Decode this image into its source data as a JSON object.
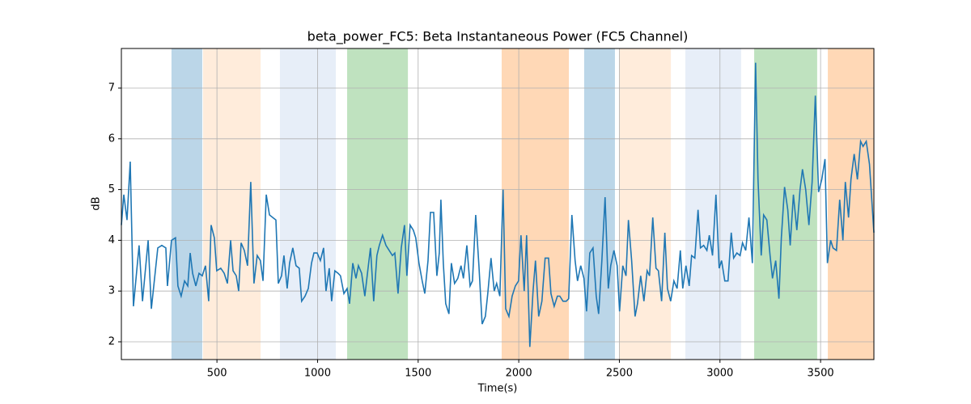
{
  "chart_data": {
    "type": "line",
    "title": "beta_power_FC5: Beta Instantaneous Power (FC5 Channel)",
    "xlabel": "Time(s)",
    "ylabel": "dB",
    "xlim": [
      25,
      3765
    ],
    "ylim": [
      1.65,
      7.78
    ],
    "xticks": [
      500,
      1000,
      1500,
      2000,
      2500,
      3000,
      3500
    ],
    "yticks": [
      2,
      3,
      4,
      5,
      6,
      7
    ],
    "grid": true,
    "spans": [
      {
        "start": 274,
        "end": 427,
        "color": "rgba(31,119,180,0.3)"
      },
      {
        "start": 431,
        "end": 717,
        "color": "rgba(255,127,14,0.15)"
      },
      {
        "start": 813,
        "end": 1091,
        "color": "rgba(174,199,232,0.3)"
      },
      {
        "start": 1147,
        "end": 1449,
        "color": "rgba(44,160,44,0.3)"
      },
      {
        "start": 1915,
        "end": 2249,
        "color": "rgba(255,127,14,0.3)"
      },
      {
        "start": 2325,
        "end": 2478,
        "color": "rgba(31,119,180,0.3)"
      },
      {
        "start": 2498,
        "end": 2756,
        "color": "rgba(255,127,14,0.15)"
      },
      {
        "start": 2828,
        "end": 3105,
        "color": "rgba(174,199,232,0.3)"
      },
      {
        "start": 3170,
        "end": 3483,
        "color": "rgba(44,160,44,0.3)"
      },
      {
        "start": 3536,
        "end": 3765,
        "color": "rgba(255,127,14,0.3)"
      }
    ],
    "x": [
      25,
      37,
      53,
      69,
      85,
      113,
      130,
      158,
      174,
      206,
      226,
      246,
      254,
      274,
      294,
      306,
      322,
      339,
      355,
      367,
      379,
      395,
      411,
      427,
      443,
      459,
      471,
      487,
      499,
      519,
      536,
      552,
      568,
      580,
      596,
      608,
      620,
      636,
      652,
      668,
      684,
      700,
      716,
      729,
      745,
      761,
      777,
      793,
      805,
      821,
      833,
      849,
      861,
      877,
      893,
      909,
      921,
      938,
      954,
      970,
      982,
      998,
      1014,
      1030,
      1042,
      1058,
      1070,
      1086,
      1102,
      1114,
      1131,
      1147,
      1159,
      1175,
      1191,
      1203,
      1219,
      1235,
      1251,
      1263,
      1279,
      1295,
      1307,
      1323,
      1340,
      1356,
      1372,
      1384,
      1400,
      1416,
      1432,
      1444,
      1460,
      1476,
      1488,
      1504,
      1520,
      1533,
      1549,
      1561,
      1577,
      1593,
      1605,
      1613,
      1625,
      1637,
      1653,
      1665,
      1681,
      1697,
      1713,
      1725,
      1742,
      1758,
      1770,
      1786,
      1802,
      1818,
      1834,
      1846,
      1862,
      1878,
      1890,
      1906,
      1922,
      1935,
      1951,
      1967,
      1983,
      1999,
      2011,
      2027,
      2039,
      2055,
      2071,
      2083,
      2099,
      2115,
      2131,
      2148,
      2160,
      2176,
      2192,
      2204,
      2220,
      2236,
      2248,
      2264,
      2280,
      2292,
      2308,
      2324,
      2337,
      2353,
      2369,
      2385,
      2397,
      2413,
      2429,
      2445,
      2457,
      2473,
      2489,
      2501,
      2517,
      2533,
      2545,
      2561,
      2578,
      2590,
      2606,
      2622,
      2638,
      2650,
      2666,
      2682,
      2694,
      2710,
      2726,
      2739,
      2755,
      2771,
      2787,
      2803,
      2815,
      2831,
      2847,
      2859,
      2875,
      2891,
      2903,
      2919,
      2935,
      2947,
      2963,
      2980,
      2996,
      3008,
      3024,
      3040,
      3056,
      3068,
      3084,
      3100,
      3112,
      3128,
      3144,
      3161,
      3177,
      3189,
      3205,
      3217,
      3233,
      3249,
      3261,
      3277,
      3293,
      3305,
      3321,
      3337,
      3349,
      3365,
      3382,
      3398,
      3410,
      3426,
      3442,
      3458,
      3474,
      3490,
      3506,
      3522,
      3534,
      3550,
      3562,
      3579,
      3595,
      3611,
      3623,
      3639,
      3651,
      3667,
      3683,
      3699,
      3711,
      3727,
      3743,
      3765
    ],
    "series": [
      {
        "name": "beta_power_FC5",
        "color": "#1f77b4",
        "values": [
          4.3,
          4.9,
          4.4,
          5.55,
          2.7,
          3.9,
          2.8,
          4.0,
          2.65,
          3.85,
          3.9,
          3.85,
          3.1,
          4.0,
          4.05,
          3.1,
          2.9,
          3.2,
          3.1,
          3.75,
          3.35,
          3.1,
          3.35,
          3.3,
          3.5,
          2.8,
          4.3,
          4.05,
          3.4,
          3.45,
          3.35,
          3.15,
          4.0,
          3.4,
          3.3,
          3.0,
          3.95,
          3.8,
          3.5,
          5.15,
          3.15,
          3.7,
          3.6,
          3.2,
          4.9,
          4.5,
          4.45,
          4.4,
          3.15,
          3.3,
          3.7,
          3.05,
          3.55,
          3.85,
          3.5,
          3.45,
          2.8,
          2.9,
          3.05,
          3.55,
          3.75,
          3.75,
          3.6,
          3.85,
          3.0,
          3.45,
          2.8,
          3.4,
          3.35,
          3.3,
          2.95,
          3.05,
          2.75,
          3.55,
          3.25,
          3.5,
          3.35,
          2.9,
          3.45,
          3.85,
          2.8,
          3.7,
          3.9,
          4.1,
          3.9,
          3.8,
          3.7,
          3.75,
          2.95,
          3.85,
          4.3,
          3.3,
          4.3,
          4.2,
          4.05,
          3.55,
          3.2,
          2.95,
          3.6,
          4.55,
          4.55,
          3.3,
          3.75,
          4.8,
          3.55,
          2.75,
          2.55,
          3.55,
          3.15,
          3.25,
          3.5,
          3.25,
          3.9,
          3.1,
          3.2,
          4.5,
          3.5,
          2.35,
          2.5,
          2.95,
          3.65,
          3.0,
          3.15,
          2.9,
          5.0,
          2.65,
          2.5,
          2.9,
          3.1,
          3.2,
          4.1,
          3.0,
          4.1,
          1.9,
          3.0,
          3.6,
          2.5,
          2.8,
          3.65,
          3.65,
          2.95,
          2.7,
          2.9,
          2.9,
          2.8,
          2.8,
          2.85,
          4.5,
          3.6,
          3.2,
          3.5,
          3.25,
          2.6,
          3.75,
          3.85,
          2.9,
          2.55,
          3.6,
          4.85,
          3.05,
          3.5,
          3.8,
          3.5,
          2.6,
          3.5,
          3.3,
          4.4,
          3.6,
          2.5,
          2.75,
          3.3,
          2.8,
          3.4,
          3.3,
          4.45,
          3.45,
          3.4,
          2.8,
          4.15,
          3.05,
          2.8,
          3.2,
          3.05,
          3.8,
          3.05,
          3.5,
          3.1,
          3.7,
          3.65,
          4.6,
          3.85,
          3.9,
          3.8,
          4.1,
          3.7,
          4.9,
          3.45,
          3.6,
          3.2,
          3.2,
          4.15,
          3.65,
          3.75,
          3.7,
          3.95,
          3.8,
          4.45,
          3.55,
          7.5,
          5.2,
          3.7,
          4.5,
          4.4,
          3.7,
          3.25,
          3.6,
          2.85,
          4.05,
          5.05,
          4.6,
          3.9,
          4.9,
          4.2,
          5.0,
          5.4,
          5.0,
          4.3,
          5.15,
          6.85,
          4.95,
          5.2,
          5.6,
          3.55,
          4.0,
          3.85,
          3.8,
          4.8,
          4.0,
          5.15,
          4.45,
          5.2,
          5.7,
          5.2,
          5.95,
          5.85,
          5.95,
          5.5,
          4.15
        ]
      }
    ]
  }
}
